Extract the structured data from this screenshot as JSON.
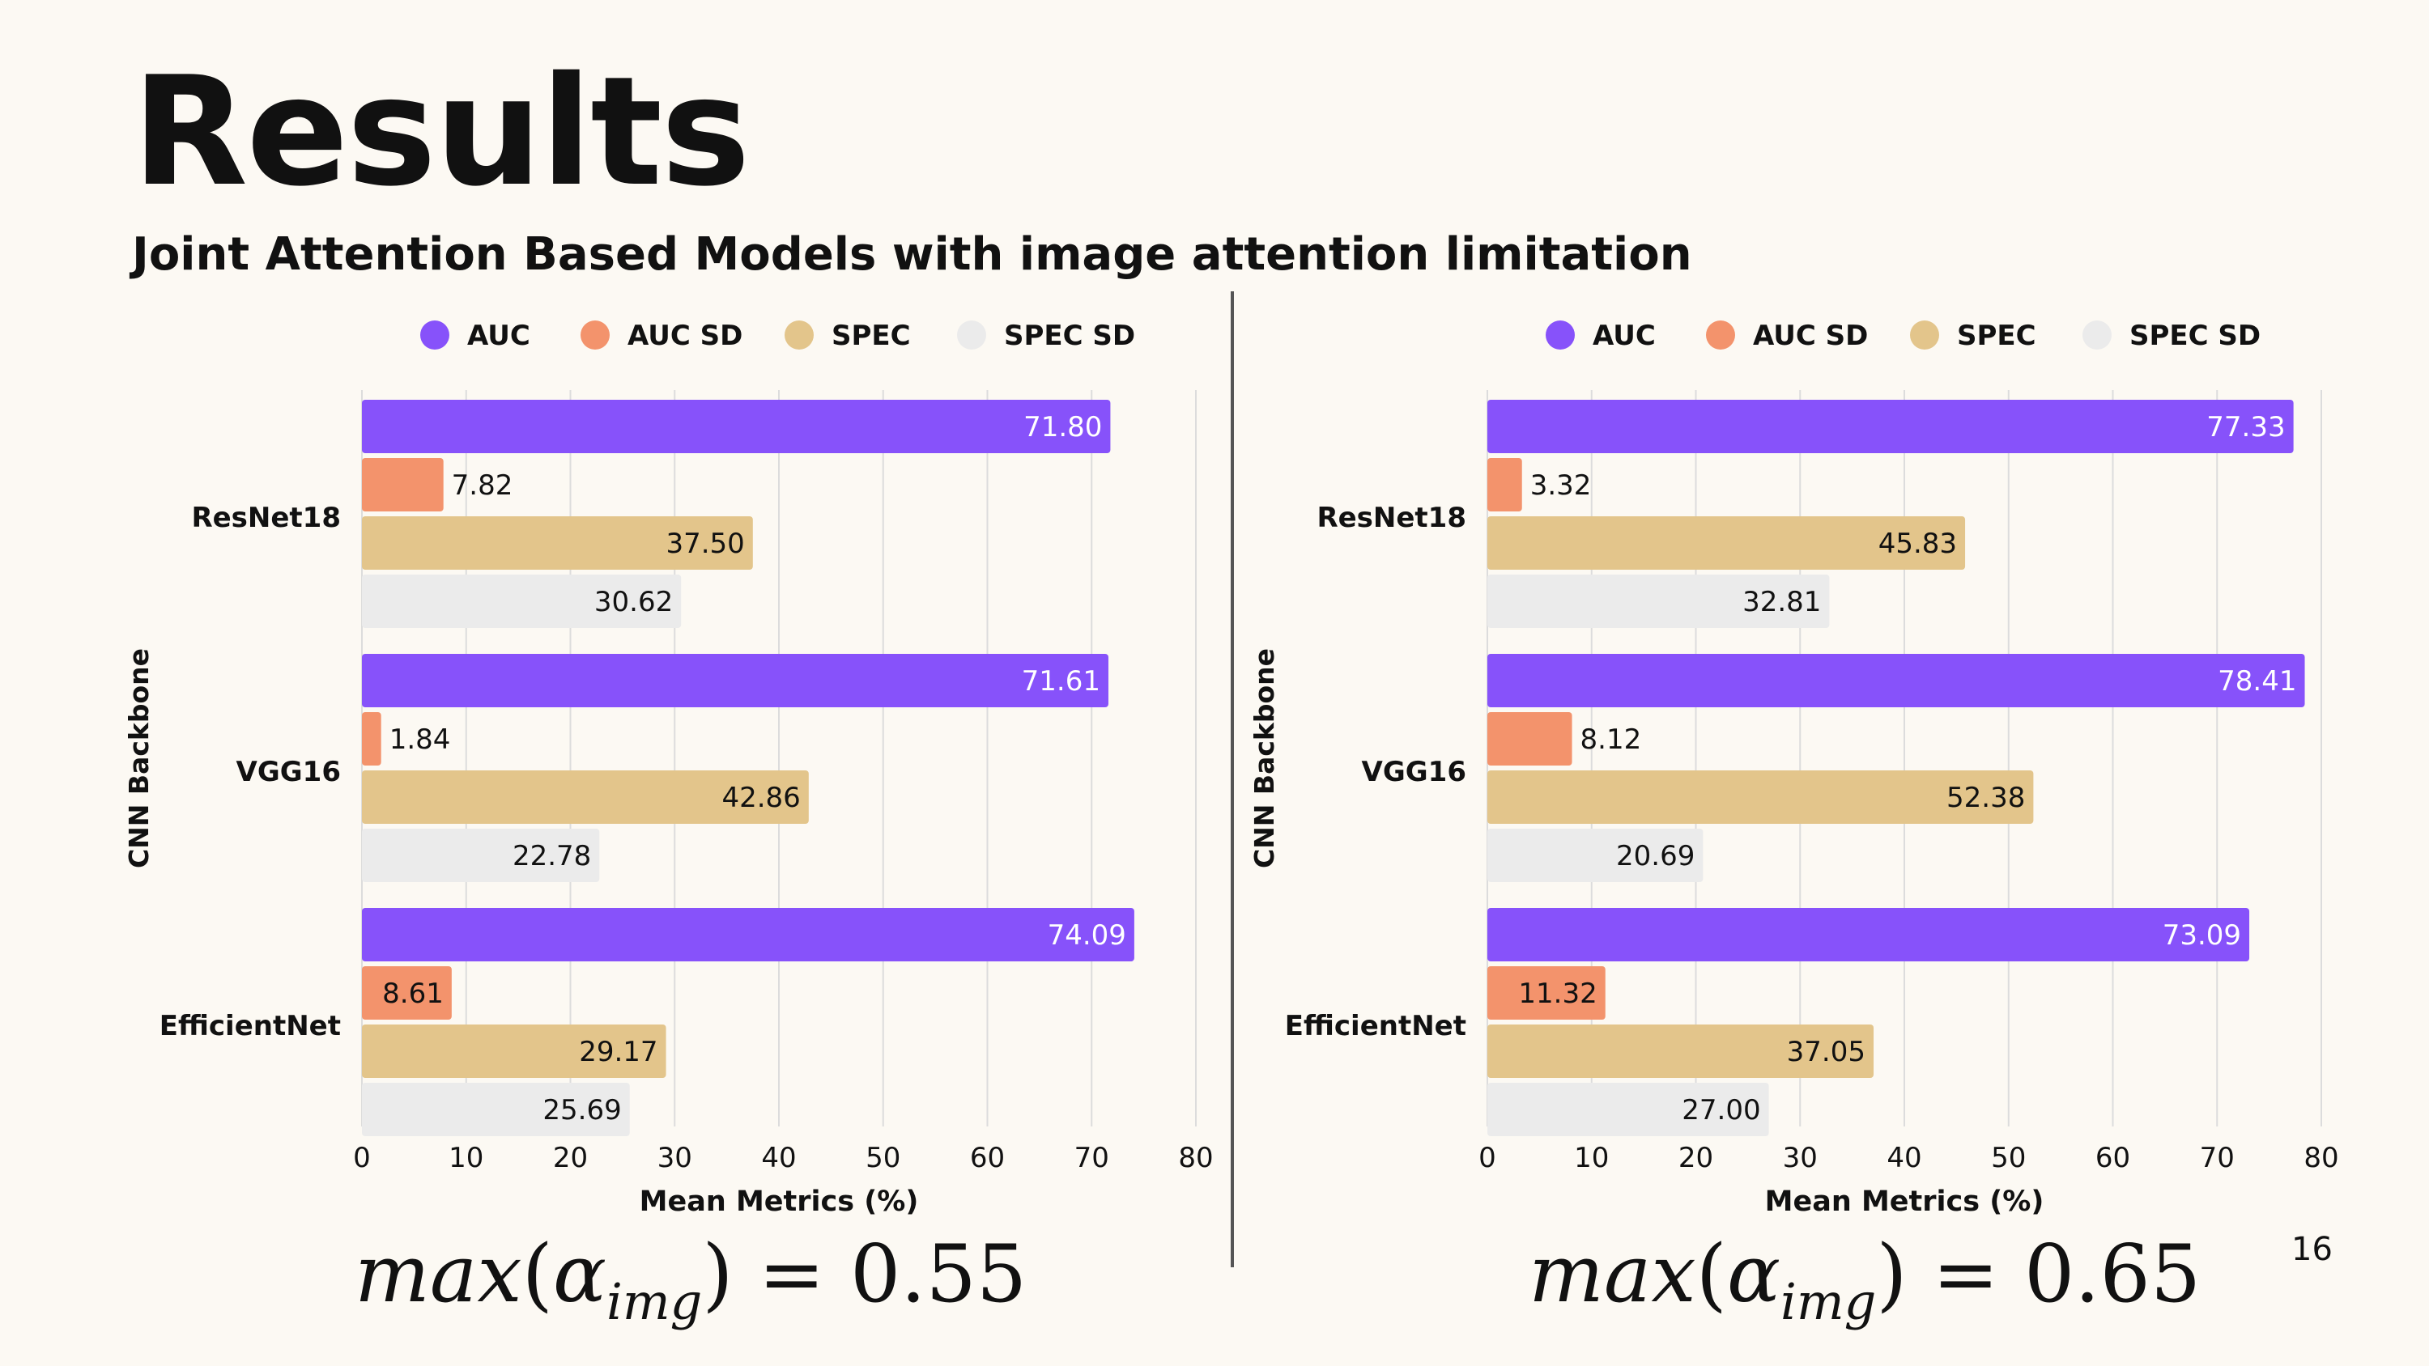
{
  "slide": {
    "title": "Results",
    "subtitle": "Joint Attention Based Models with image attention limitation",
    "page_number": "16"
  },
  "formulas": [
    {
      "func": "max",
      "open": "(",
      "symbol": "α",
      "subscript": "img",
      "close": ")",
      "equals": "=",
      "value": "0.55"
    },
    {
      "func": "max",
      "open": "(",
      "symbol": "α",
      "subscript": "img",
      "close": ")",
      "equals": "=",
      "value": "0.65"
    }
  ],
  "chart_data": [
    {
      "type": "bar",
      "orientation": "horizontal",
      "categories": [
        "ResNet18",
        "VGG16",
        "EfficientNet"
      ],
      "series": [
        {
          "name": "AUC",
          "color": "#8752fa",
          "values": [
            71.8,
            71.61,
            74.09
          ],
          "labels": [
            "71.80",
            "71.61",
            "74.09"
          ]
        },
        {
          "name": "AUC SD",
          "color": "#f3936c",
          "values": [
            7.82,
            1.84,
            8.61
          ],
          "labels": [
            "7.82",
            "1.84",
            "8.61"
          ]
        },
        {
          "name": "SPEC",
          "color": "#e3c58b",
          "values": [
            37.5,
            42.86,
            29.17
          ],
          "labels": [
            "37.50",
            "42.86",
            "29.17"
          ]
        },
        {
          "name": "SPEC SD",
          "color": "#ebebeb",
          "values": [
            30.62,
            22.78,
            25.69
          ],
          "labels": [
            "30.62",
            "22.78",
            "25.69"
          ]
        }
      ],
      "xlabel": "Mean Metrics (%)",
      "ylabel": "CNN Backbone",
      "xlim": [
        0,
        80
      ],
      "xticks": [
        "0",
        "10",
        "20",
        "30",
        "40",
        "50",
        "60",
        "70",
        "80"
      ],
      "grid": "vertical",
      "legend": "top"
    },
    {
      "type": "bar",
      "orientation": "horizontal",
      "categories": [
        "ResNet18",
        "VGG16",
        "EfficientNet"
      ],
      "series": [
        {
          "name": "AUC",
          "color": "#8752fa",
          "values": [
            77.33,
            78.41,
            73.09
          ],
          "labels": [
            "77.33",
            "78.41",
            "73.09"
          ]
        },
        {
          "name": "AUC SD",
          "color": "#f3936c",
          "values": [
            3.32,
            8.12,
            11.32
          ],
          "labels": [
            "3.32",
            "8.12",
            "11.32"
          ]
        },
        {
          "name": "SPEC",
          "color": "#e3c58b",
          "values": [
            45.83,
            52.38,
            37.05
          ],
          "labels": [
            "45.83",
            "52.38",
            "37.05"
          ]
        },
        {
          "name": "SPEC SD",
          "color": "#ebebeb",
          "values": [
            32.81,
            20.69,
            27.0
          ],
          "labels": [
            "32.81",
            "20.69",
            "27.00"
          ]
        }
      ],
      "xlabel": "Mean Metrics (%)",
      "ylabel": "CNN Backbone",
      "xlim": [
        0,
        80
      ],
      "xticks": [
        "0",
        "10",
        "20",
        "30",
        "40",
        "50",
        "60",
        "70",
        "80"
      ],
      "grid": "vertical",
      "legend": "top"
    }
  ]
}
